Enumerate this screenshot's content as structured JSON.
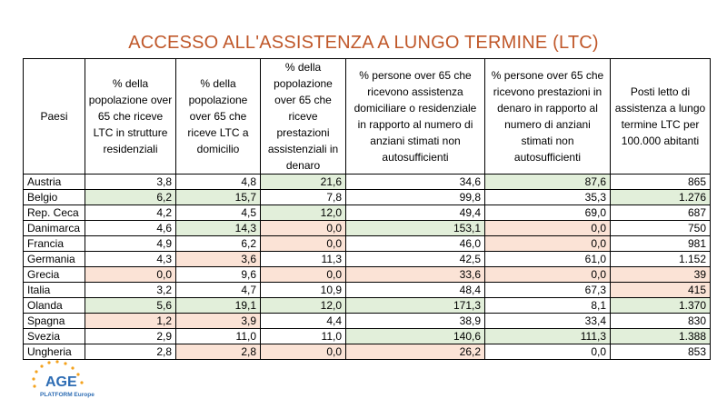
{
  "title": "ACCESSO ALL'ASSISTENZA A LUNGO TERMINE (LTC)",
  "table": {
    "headers": [
      "Paesi",
      "% della popolazione over 65 che riceve LTC in strutture residenziali",
      "% della popolazione over 65 che riceve LTC a domicilio",
      "% della popolazione over 65 che riceve prestazioni assistenziali in denaro",
      "% persone over 65 che ricevono assistenza domiciliare o residenziale in rapporto al numero di anziani stimati non autosufficienti",
      "% persone over 65 che ricevono prestazioni in denaro in rapporto al numero di anziani stimati non autosufficienti",
      "Posti letto di assistenza a lungo termine LTC per 100.000 abitanti"
    ],
    "rows": [
      {
        "cells": [
          "Austria",
          "3,8",
          "4,8",
          "21,6",
          "34,6",
          "87,6",
          "865"
        ],
        "hl": [
          "",
          "",
          "",
          "g",
          "",
          "g",
          ""
        ]
      },
      {
        "cells": [
          "Belgio",
          "6,2",
          "15,7",
          "7,8",
          "99,8",
          "35,3",
          "1.276"
        ],
        "hl": [
          "",
          "g",
          "g",
          "",
          "",
          "",
          "g"
        ]
      },
      {
        "cells": [
          "Rep. Ceca",
          "4,2",
          "4,5",
          "12,0",
          "49,4",
          "69,0",
          "687"
        ],
        "hl": [
          "",
          "",
          "",
          "g",
          "",
          "",
          ""
        ]
      },
      {
        "cells": [
          "Danimarca",
          "4,6",
          "14,3",
          "0,0",
          "153,1",
          "0,0",
          "750"
        ],
        "hl": [
          "",
          "",
          "g",
          "p",
          "g",
          "p",
          ""
        ]
      },
      {
        "cells": [
          "Francia",
          "4,9",
          "6,2",
          "0,0",
          "46,0",
          "0,0",
          "981"
        ],
        "hl": [
          "",
          "",
          "",
          "p",
          "",
          "p",
          ""
        ]
      },
      {
        "cells": [
          "Germania",
          "4,3",
          "3,6",
          "11,3",
          "42,5",
          "61,0",
          "1.152"
        ],
        "hl": [
          "",
          "",
          "p",
          "",
          "",
          "",
          ""
        ]
      },
      {
        "cells": [
          "Grecia",
          "0,0",
          "9,6",
          "0,0",
          "33,6",
          "0,0",
          "39"
        ],
        "hl": [
          "",
          "p",
          "",
          "p",
          "p",
          "p",
          "p"
        ]
      },
      {
        "cells": [
          "Italia",
          "3,2",
          "4,7",
          "10,9",
          "48,4",
          "67,3",
          "415"
        ],
        "hl": [
          "",
          "",
          "",
          "",
          "",
          "",
          "p"
        ]
      },
      {
        "cells": [
          "Olanda",
          "5,6",
          "19,1",
          "12,0",
          "171,3",
          "8,1",
          "1.370"
        ],
        "hl": [
          "",
          "g",
          "g",
          "g",
          "g",
          "",
          "g"
        ]
      },
      {
        "cells": [
          "Spagna",
          "1,2",
          "3,9",
          "4,4",
          "38,9",
          "33,4",
          "830"
        ],
        "hl": [
          "",
          "p",
          "p",
          "",
          "",
          "",
          ""
        ]
      },
      {
        "cells": [
          "Svezia",
          "2,9",
          "11,0",
          "11,0",
          "140,6",
          "111,3",
          "1.388"
        ],
        "hl": [
          "",
          "",
          "",
          "",
          "g",
          "g",
          "g"
        ]
      },
      {
        "cells": [
          "Ungheria",
          "2,8",
          "2,8",
          "0,0",
          "26,2",
          "0,0",
          "853"
        ],
        "hl": [
          "",
          "",
          "p",
          "p",
          "p",
          "",
          ""
        ]
      }
    ]
  },
  "logo": {
    "line1": "AGE",
    "line2": "PLATFORM Europe"
  },
  "colors": {
    "title": "#c0582a",
    "highlight_high": "#e2efda",
    "highlight_low": "#fbe3d6",
    "logo_blue": "#2e6db4",
    "logo_orange": "#f4a21d"
  }
}
